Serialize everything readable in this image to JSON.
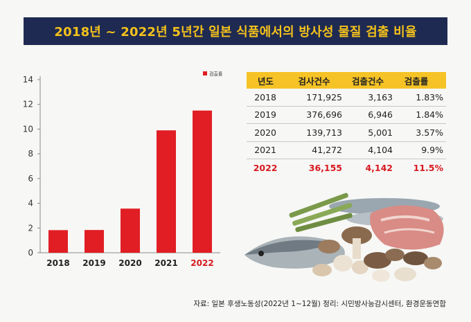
{
  "title": "2018년 ~ 2022년 5년간 일본 식품에서의 방사성 물질 검출 비율",
  "colors": {
    "title_bg": "#1f2a52",
    "title_text": "#f4c21b",
    "bar": "#e01e24",
    "highlight": "#d7191f",
    "table_header": "#f6c326"
  },
  "chart_data": {
    "type": "bar",
    "categories": [
      "2018",
      "2019",
      "2020",
      "2021",
      "2022"
    ],
    "series": [
      {
        "name": "검출률",
        "values": [
          1.83,
          1.84,
          3.57,
          9.9,
          11.5
        ]
      }
    ],
    "ylim": [
      0,
      14
    ],
    "yticks": [
      "0",
      "2",
      "4",
      "6",
      "8",
      "10",
      "12",
      "14"
    ],
    "legend": "top-right",
    "highlight_category": "2022",
    "grid": false
  },
  "table": {
    "headers": [
      "년도",
      "검사건수",
      "검출건수",
      "검출률"
    ],
    "rows": [
      [
        "2018",
        "171,925",
        "3,163",
        "1.83%"
      ],
      [
        "2019",
        "376,696",
        "6,946",
        "1.84%"
      ],
      [
        "2020",
        "139,713",
        "5,001",
        "3.57%"
      ],
      [
        "2021",
        "41,272",
        "4,104",
        "9.9%"
      ],
      [
        "2022",
        "36,155",
        "4,142",
        "11.5%"
      ]
    ]
  },
  "source": "자료: 일본 후생노동성(2022년 1~12월)  정리: 시민방사능감시센터, 환경운동연합"
}
